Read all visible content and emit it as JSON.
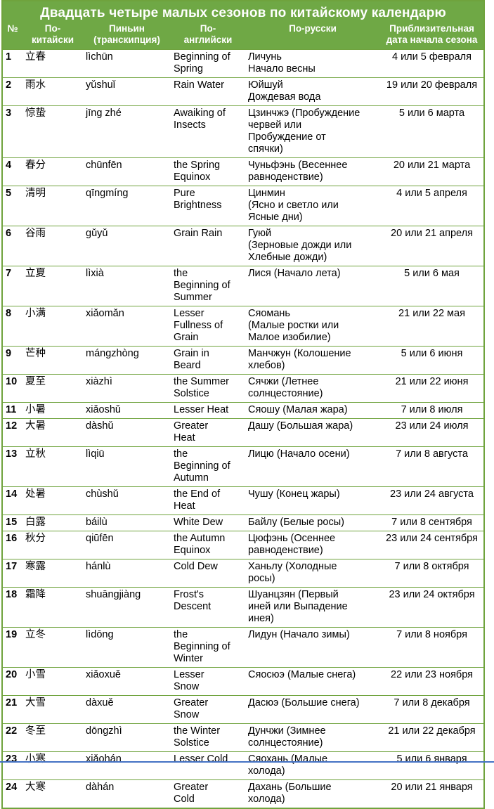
{
  "colors": {
    "header_green": "#6fa845",
    "border_green": "#6fa33d",
    "header_text": "#ffffff",
    "body_text": "#000000",
    "bottom_divider_blue": "#4472c4"
  },
  "table": {
    "title": "Двадцать четыре малых сезонов по китайскому календарю",
    "columns": [
      {
        "label": "№"
      },
      {
        "label": "По-\nкитайски"
      },
      {
        "label": "Пиньин\n(транскипция)"
      },
      {
        "label": "По-\nанглийски"
      },
      {
        "label": "По-русски"
      },
      {
        "label": "Приблизительная\nдата начала сезона"
      }
    ],
    "rows": [
      {
        "num": "1",
        "chinese": "立春",
        "pinyin": "lìchūn",
        "english": "Beginning of\nSpring",
        "russian": "Личунь\nНачало весны",
        "date": "4 или 5 февраля"
      },
      {
        "num": "2",
        "chinese": "雨水",
        "pinyin": "yǔshuǐ",
        "english": "Rain Water",
        "russian": "Юйшуй\nДождевая вода",
        "date": "19 или 20 февраля"
      },
      {
        "num": "3",
        "chinese": "惊蛰",
        "pinyin": "jīng zhé",
        "english": "Awaiking of\nInsects",
        "russian": "Цзинчжэ (Пробуждение\nчервей или\nПробуждение от\nспячки)",
        "date": "5 или 6 марта"
      },
      {
        "num": "4",
        "chinese": "春分",
        "pinyin": "chūnfēn",
        "english": "the Spring\nEquinox",
        "russian": "Чуньфэнь (Весеннее\nравноденствие)",
        "date": "20 или 21 марта"
      },
      {
        "num": "5",
        "chinese": "清明",
        "pinyin": "qīngmíng",
        "english": "Pure\nBrightness",
        "russian": "Цинмин\n(Ясно и светло или\nЯсные дни)",
        "date": "4 или 5 апреля"
      },
      {
        "num": "6",
        "chinese": "谷雨",
        "pinyin": "gǔyǔ",
        "english": "Grain Rain",
        "russian": "Гуюй\n(Зерновые дожди или\nХлебные дожди)",
        "date": "20 или 21 апреля"
      },
      {
        "num": "7",
        "chinese": "立夏",
        "pinyin": "lìxià",
        "english": "the\nBeginning of\nSummer",
        "russian": "Лися (Начало лета)",
        "date": "5 или 6 мая"
      },
      {
        "num": "8",
        "chinese": "小满",
        "pinyin": "xiǎomǎn",
        "english": "Lesser\nFullness of\nGrain",
        "russian": "Сяомань\n(Малые ростки или\nМалое изобилие)",
        "date": "21 или 22 мая"
      },
      {
        "num": "9",
        "chinese": "芒种",
        "pinyin": "mángzhòng",
        "english": "Grain in\nBeard",
        "russian": "Манчжун  (Колошение\nхлебов)",
        "date": "5 или 6 июня"
      },
      {
        "num": "10",
        "chinese": "夏至",
        "pinyin": "xiàzhì",
        "english": "the Summer\nSolstice",
        "russian": "Сячжи  (Летнее\nсолнцестояние)",
        "date": "21 или 22 июня"
      },
      {
        "num": "11",
        "chinese": "小暑",
        "pinyin": "xiǎoshǔ",
        "english": "Lesser Heat",
        "russian": "Сяошу (Малая жара)",
        "date": "7 или 8 июля"
      },
      {
        "num": "12",
        "chinese": "大暑",
        "pinyin": "dàshǔ",
        "english": "Greater\nHeat",
        "russian": "Дашу (Большая жара)",
        "date": "23 или 24 июля"
      },
      {
        "num": "13",
        "chinese": "立秋",
        "pinyin": "lìqiū",
        "english": "the\nBeginning of\nAutumn",
        "russian": "Лицю (Начало осени)",
        "date": "7 или 8 августа"
      },
      {
        "num": "14",
        "chinese": "处暑",
        "pinyin": "chùshǔ",
        "english": "the End of\nHeat",
        "russian": "Чушу  (Конец жары)",
        "date": "23 или 24 августа"
      },
      {
        "num": "15",
        "chinese": "白露",
        "pinyin": "báilù",
        "english": "White Dew",
        "russian": "Байлу  (Белые росы)",
        "date": "7 или 8 сентября"
      },
      {
        "num": "16",
        "chinese": "秋分",
        "pinyin": "qiūfēn",
        "english": "the Autumn\nEquinox",
        "russian": "Цюфэнь (Осеннее\nравноденствие)",
        "date": "23 или 24 сентября"
      },
      {
        "num": "17",
        "chinese": "寒露",
        "pinyin": "hánlù",
        "english": "Cold Dew",
        "russian": "Ханьлу  (Холодные\nросы)",
        "date": "7 или 8 октября"
      },
      {
        "num": "18",
        "chinese": "霜降",
        "pinyin": "shuāngjiàng",
        "english": "Frost's\nDescent",
        "russian": "Шуанцзян  (Первый\nиней или Выпадение\nинея)",
        "date": "23 или 24 октября"
      },
      {
        "num": "19",
        "chinese": "立冬",
        "pinyin": "lìdōng",
        "english": "the\nBeginning of\nWinter",
        "russian": "Лидун (Начало зимы)",
        "date": "7 или 8 ноября"
      },
      {
        "num": "20",
        "chinese": "小雪",
        "pinyin": "xiǎoxuě",
        "english": "Lesser\nSnow",
        "russian": "Сяосюэ (Малые снега)",
        "date": "22 или 23 ноября"
      },
      {
        "num": "21",
        "chinese": "大雪",
        "pinyin": "dàxuě",
        "english": "Greater\nSnow",
        "russian": "Дасюэ (Большие снега)",
        "date": "7 или 8 декабря"
      },
      {
        "num": "22",
        "chinese": "冬至",
        "pinyin": "dōngzhì",
        "english": "the Winter\nSolstice",
        "russian": "Дунчжи (Зимнее\nсолнцестояние)",
        "date": "21 или 22 декабря"
      },
      {
        "num": "23",
        "chinese": "小寒",
        "pinyin": "xiǎohán",
        "english": "Lesser Cold",
        "russian": "Сяохань (Малые\nхолода)",
        "date": "5 или 6 января"
      },
      {
        "num": "24",
        "chinese": "大寒",
        "pinyin": "dàhán",
        "english": "Greater\nCold",
        "russian": "Дахань (Большие\nхолода)",
        "date": "20 или 21 января"
      }
    ]
  }
}
